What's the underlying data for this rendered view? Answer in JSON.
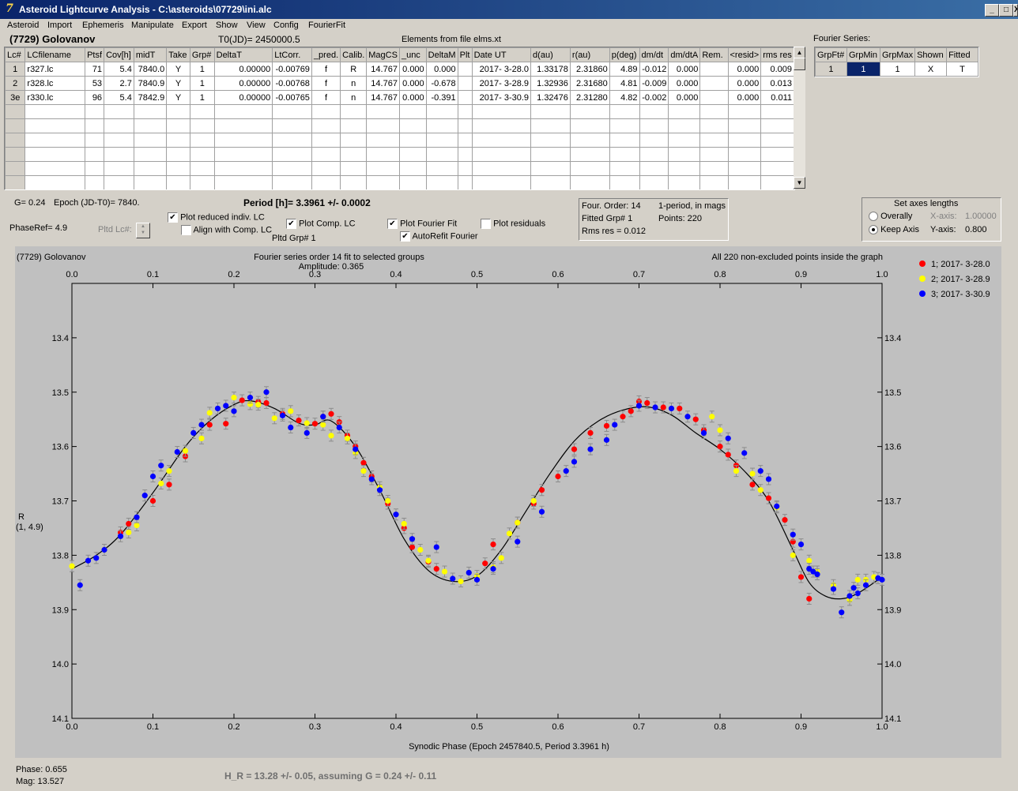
{
  "window": {
    "title": "Asteroid Lightcurve Analysis - C:\\asteroids\\07729\\ini.alc",
    "icon_glyph": "7",
    "minimize_glyph": "_",
    "maximize_glyph": "□",
    "close_glyph": "X"
  },
  "menu": [
    "Asteroid",
    "Import",
    "Ephemeris",
    "Manipulate",
    "Export",
    "Show",
    "View",
    "Config",
    "FourierFit"
  ],
  "header": {
    "asteroid": "(7729) Golovanov",
    "t0": "T0(JD)= 2450000.5",
    "elements": "Elements from file elms.xt",
    "fourier_series_label": "Fourier Series:"
  },
  "lc_table": {
    "columns": [
      "Lc#",
      "LCfilename",
      "Ptsf",
      "Cov[h]",
      "midT",
      "Take",
      "Grp#",
      "DeltaT",
      "LtCorr.",
      "_pred.",
      "Calib.",
      "MagCS",
      "_unc",
      "DeltaM",
      "Plt",
      "Date UT",
      "d(au)",
      "r(au)",
      "p(deg)",
      "dm/dt",
      "dm/dtA",
      "Rem.",
      "<resid>",
      "rms res"
    ],
    "rows": [
      [
        "1",
        "r327.lc",
        "71",
        "5.4",
        "7840.0",
        "Y",
        "1",
        "0.00000",
        "-0.00769",
        "f",
        "R",
        "14.767",
        "0.000",
        "0.000",
        "",
        "2017- 3-28.0",
        "1.33178",
        "2.31860",
        "4.89",
        "-0.012",
        "0.000",
        "",
        "0.000",
        "0.009"
      ],
      [
        "2",
        "r328.lc",
        "53",
        "2.7",
        "7840.9",
        "Y",
        "1",
        "0.00000",
        "-0.00768",
        "f",
        "n",
        "14.767",
        "0.000",
        "-0.678",
        "",
        "2017- 3-28.9",
        "1.32936",
        "2.31680",
        "4.81",
        "-0.009",
        "0.000",
        "",
        "0.000",
        "0.013"
      ],
      [
        "3e",
        "r330.lc",
        "96",
        "5.4",
        "7842.9",
        "Y",
        "1",
        "0.00000",
        "-0.00765",
        "f",
        "n",
        "14.767",
        "0.000",
        "-0.391",
        "",
        "2017- 3-30.9",
        "1.32476",
        "2.31280",
        "4.82",
        "-0.002",
        "0.000",
        "",
        "0.000",
        "0.011"
      ]
    ],
    "empty_rows": 6
  },
  "fourier_table": {
    "columns": [
      "GrpFt#",
      "GrpMin",
      "GrpMax",
      "Shown",
      "Fitted"
    ],
    "row": [
      "1",
      "1",
      "1",
      "X",
      "T"
    ]
  },
  "params": {
    "g": "G= 0.24",
    "epoch": "Epoch (JD-T0)= 7840.",
    "period": "Period [h]= 3.3961 +/- 0.0002",
    "phaseref": "PhaseRef= 4.9",
    "pltd_lc": "Pltd Lc#:",
    "pltd_grp": "Pltd Grp#  1"
  },
  "checkboxes": {
    "plot_reduced": {
      "label": "Plot reduced indiv. LC",
      "checked": true
    },
    "align_comp": {
      "label": "Align with Comp. LC",
      "checked": false
    },
    "plot_comp": {
      "label": "Plot Comp. LC",
      "checked": true
    },
    "plot_fourier": {
      "label": "Plot Fourier Fit",
      "checked": true
    },
    "plot_residuals": {
      "label": "Plot residuals",
      "checked": false
    },
    "autorefit": {
      "label": "AutoRefit Fourier",
      "checked": true
    }
  },
  "fourier_info": {
    "order": "Four. Order: 14",
    "mode": "1-period, in mags",
    "fitted": "Fitted Grp# 1",
    "points": "Points: 220",
    "rms": "Rms res     = 0.012"
  },
  "axes_box": {
    "title": "Set axes lengths",
    "overally": "Overally",
    "keep_axis": "Keep Axis",
    "selected": "keep_axis",
    "x_axis_label": "X-axis:",
    "x_axis_value": "1.00000",
    "y_axis_label": "Y-axis:",
    "y_axis_value": "0.800"
  },
  "chart_data": {
    "type": "scatter",
    "title_left": "(7729) Golovanov",
    "title_center": "Fourier series order 14 fit to selected groups",
    "amplitude": "Amplitude: 0.365",
    "note_right": "All 220 non-excluded points inside the graph",
    "xlabel": "Synodic Phase (Epoch 2457840.5, Period 3.3961 h)",
    "ylabel": "R",
    "ylabel2": "(1, 4.9)",
    "xlim": [
      0.0,
      1.0
    ],
    "ylim": [
      13.3,
      14.1
    ],
    "y_inverted": true,
    "x_ticks": [
      0.0,
      0.1,
      0.2,
      0.3,
      0.4,
      0.5,
      0.6,
      0.7,
      0.8,
      0.9,
      1.0
    ],
    "x_tick_labels": [
      "0.0",
      "0.1",
      "0.2",
      "0.3",
      "0.4",
      "0.5",
      "0.6",
      "0.7",
      "0.8",
      "0.9",
      "1.0"
    ],
    "y_ticks": [
      13.4,
      13.5,
      13.6,
      13.7,
      13.8,
      13.9,
      14.0,
      14.1
    ],
    "y_tick_labels": [
      "13.4",
      "13.5",
      "13.6",
      "13.7",
      "13.8",
      "13.9",
      "14.0",
      "14.1"
    ],
    "fourier_curve": {
      "x": [
        0.0,
        0.03,
        0.06,
        0.1,
        0.14,
        0.17,
        0.2,
        0.22,
        0.25,
        0.28,
        0.3,
        0.32,
        0.35,
        0.38,
        0.41,
        0.44,
        0.47,
        0.5,
        0.53,
        0.56,
        0.59,
        0.62,
        0.65,
        0.68,
        0.71,
        0.74,
        0.77,
        0.8,
        0.83,
        0.86,
        0.89,
        0.91,
        0.93,
        0.95,
        0.97,
        1.0
      ],
      "y": [
        13.825,
        13.8,
        13.762,
        13.685,
        13.6,
        13.553,
        13.523,
        13.516,
        13.53,
        13.557,
        13.56,
        13.553,
        13.6,
        13.68,
        13.77,
        13.828,
        13.848,
        13.838,
        13.79,
        13.72,
        13.65,
        13.59,
        13.553,
        13.533,
        13.527,
        13.542,
        13.575,
        13.605,
        13.645,
        13.7,
        13.79,
        13.85,
        13.875,
        13.88,
        13.87,
        13.84
      ]
    },
    "series": [
      {
        "name": "1; 2017- 3-28.0",
        "color": "#ff0000",
        "x": [
          0.06,
          0.07,
          0.1,
          0.12,
          0.14,
          0.17,
          0.19,
          0.21,
          0.23,
          0.24,
          0.26,
          0.28,
          0.3,
          0.31,
          0.32,
          0.33,
          0.34,
          0.35,
          0.36,
          0.37,
          0.39,
          0.41,
          0.42,
          0.44,
          0.45,
          0.51,
          0.52,
          0.55,
          0.57,
          0.58,
          0.6,
          0.62,
          0.64,
          0.66,
          0.68,
          0.69,
          0.7,
          0.71,
          0.73,
          0.75,
          0.77,
          0.78,
          0.8,
          0.81,
          0.82,
          0.84,
          0.86,
          0.88,
          0.89,
          0.9,
          0.91
        ],
        "y": [
          13.758,
          13.742,
          13.7,
          13.67,
          13.618,
          13.56,
          13.558,
          13.515,
          13.518,
          13.52,
          13.54,
          13.552,
          13.558,
          13.545,
          13.54,
          13.555,
          13.58,
          13.6,
          13.63,
          13.655,
          13.705,
          13.75,
          13.785,
          13.812,
          13.825,
          13.815,
          13.78,
          13.74,
          13.705,
          13.68,
          13.655,
          13.605,
          13.575,
          13.562,
          13.545,
          13.535,
          13.517,
          13.52,
          13.528,
          13.53,
          13.55,
          13.57,
          13.6,
          13.615,
          13.635,
          13.67,
          13.695,
          13.735,
          13.775,
          13.84,
          13.88
        ]
      },
      {
        "name": "2; 2017- 3-28.9",
        "color": "#ffff00",
        "x": [
          0.0,
          0.04,
          0.07,
          0.08,
          0.11,
          0.12,
          0.14,
          0.16,
          0.17,
          0.2,
          0.22,
          0.23,
          0.25,
          0.27,
          0.29,
          0.31,
          0.32,
          0.34,
          0.35,
          0.36,
          0.38,
          0.39,
          0.41,
          0.43,
          0.44,
          0.46,
          0.48,
          0.5,
          0.52,
          0.53,
          0.54,
          0.55,
          0.57,
          0.79,
          0.8,
          0.82,
          0.84,
          0.85,
          0.87,
          0.89,
          0.91,
          0.92,
          0.94,
          0.96,
          0.97,
          0.98,
          0.99
        ],
        "y": [
          13.82,
          13.79,
          13.758,
          13.745,
          13.668,
          13.645,
          13.608,
          13.585,
          13.538,
          13.51,
          13.522,
          13.523,
          13.548,
          13.535,
          13.557,
          13.56,
          13.58,
          13.585,
          13.612,
          13.645,
          13.675,
          13.7,
          13.742,
          13.79,
          13.81,
          13.83,
          13.848,
          13.838,
          13.822,
          13.805,
          13.76,
          13.74,
          13.7,
          13.545,
          13.57,
          13.645,
          13.65,
          13.68,
          13.712,
          13.8,
          13.81,
          13.83,
          13.855,
          13.882,
          13.845,
          13.845,
          13.84
        ]
      },
      {
        "name": "3; 2017- 3-30.9",
        "color": "#0000ff",
        "x": [
          0.01,
          0.02,
          0.03,
          0.04,
          0.06,
          0.08,
          0.09,
          0.1,
          0.11,
          0.13,
          0.15,
          0.16,
          0.18,
          0.19,
          0.2,
          0.22,
          0.24,
          0.26,
          0.27,
          0.29,
          0.31,
          0.33,
          0.35,
          0.37,
          0.38,
          0.4,
          0.42,
          0.45,
          0.47,
          0.49,
          0.5,
          0.52,
          0.55,
          0.58,
          0.61,
          0.62,
          0.64,
          0.66,
          0.67,
          0.7,
          0.72,
          0.74,
          0.76,
          0.78,
          0.81,
          0.83,
          0.85,
          0.86,
          0.87,
          0.89,
          0.9,
          0.91,
          0.92,
          0.94,
          0.95,
          0.96,
          0.97,
          0.98,
          0.995,
          1.0,
          0.915,
          0.965
        ],
        "y": [
          13.855,
          13.81,
          13.805,
          13.79,
          13.765,
          13.73,
          13.69,
          13.655,
          13.635,
          13.61,
          13.575,
          13.56,
          13.53,
          13.525,
          13.535,
          13.51,
          13.5,
          13.543,
          13.565,
          13.575,
          13.545,
          13.565,
          13.605,
          13.66,
          13.68,
          13.725,
          13.77,
          13.785,
          13.843,
          13.832,
          13.845,
          13.825,
          13.775,
          13.72,
          13.645,
          13.628,
          13.605,
          13.588,
          13.56,
          13.525,
          13.528,
          13.53,
          13.545,
          13.575,
          13.585,
          13.612,
          13.645,
          13.66,
          13.71,
          13.762,
          13.78,
          13.825,
          13.835,
          13.862,
          13.905,
          13.875,
          13.87,
          13.855,
          13.842,
          13.845,
          13.83,
          13.86
        ]
      }
    ],
    "legend_position": "top-right",
    "grid": false
  },
  "status": {
    "phase": "Phase:  0.655",
    "mag": "Mag:    13.527",
    "hr": "H_R = 13.28 +/- 0.05, assuming G = 0.24 +/- 0.11"
  }
}
